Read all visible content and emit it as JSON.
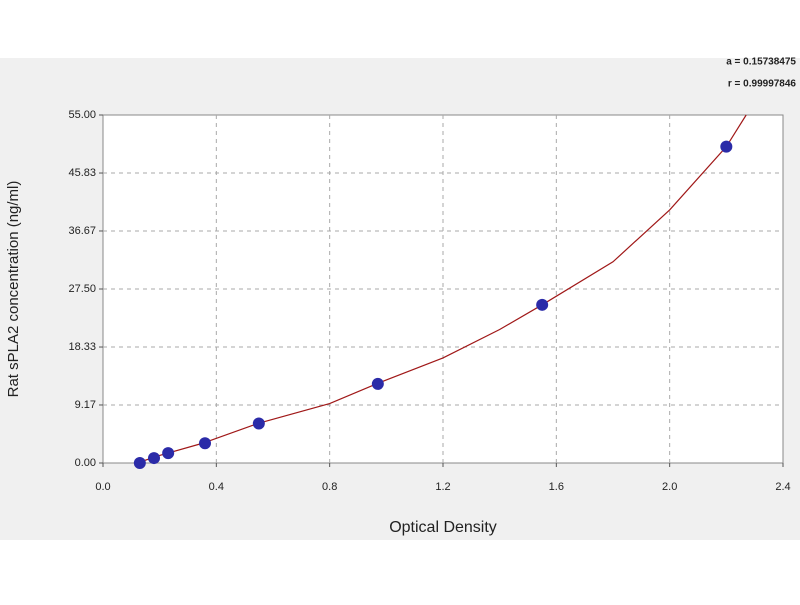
{
  "chart_data": {
    "type": "scatter",
    "x_label": "Optical Density",
    "y_label": "Rat sPLA2 concentration (ng/ml)",
    "annotations": [
      "a = 0.15738475",
      "r = 0.99997846"
    ],
    "xlim": [
      0,
      2.4
    ],
    "ylim": [
      0,
      55
    ],
    "xticks": [
      {
        "value": 0,
        "label": "0.0"
      },
      0.4,
      0.8,
      1.2,
      1.6,
      {
        "value": 2,
        "label": "2.0"
      },
      2.4
    ],
    "yticks": [
      {
        "value": 0,
        "label": "0.00"
      },
      9.17,
      18.33,
      {
        "value": 27.5,
        "label": "27.50"
      },
      36.67,
      45.83,
      {
        "value": 55,
        "label": "55.00"
      }
    ],
    "grid": true,
    "points": {
      "color": "#2b2ba8",
      "x": [
        0.13,
        0.18,
        0.23,
        0.36,
        0.55,
        0.97,
        1.55,
        2.2
      ],
      "values": [
        0,
        0.78,
        1.56,
        3.13,
        6.25,
        12.5,
        25,
        50
      ]
    },
    "fit": {
      "color": "#a01818",
      "x": [
        0.12,
        0.2,
        0.35,
        0.55,
        0.8,
        0.97,
        1.2,
        1.4,
        1.55,
        1.8,
        2.0,
        2.2,
        2.27
      ],
      "values": [
        0,
        1.2,
        3.1,
        6.3,
        9.4,
        12.6,
        16.6,
        21.1,
        25,
        31.8,
        40,
        50,
        55
      ]
    }
  }
}
